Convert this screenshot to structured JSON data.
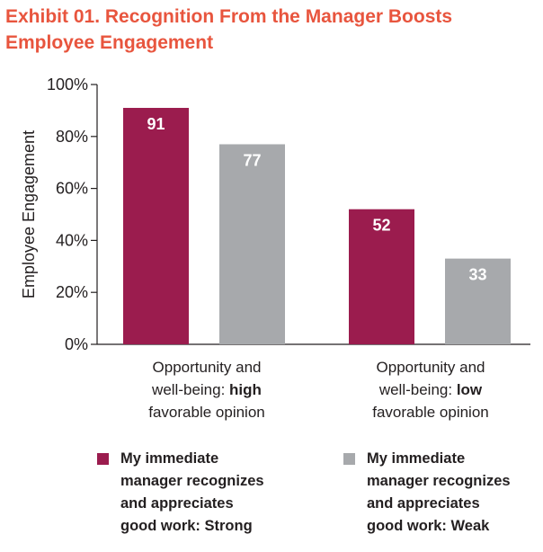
{
  "title": {
    "lines": [
      "Exhibit 01. Recognition From the Manager Boosts",
      "Employee Engagement"
    ]
  },
  "colors": {
    "title": "#e8553e",
    "strong": "#9b1c4e",
    "weak": "#a7a9ac",
    "text": "#231f20"
  },
  "chart_data": {
    "type": "bar",
    "ylabel": "Employee Engagement",
    "ylim": [
      0,
      100
    ],
    "yticks": [
      "0%",
      "20%",
      "40%",
      "60%",
      "80%",
      "100%"
    ],
    "grid": false,
    "legend_position": "bottom",
    "categories": [
      {
        "pre": "Opportunity and",
        "mid": "well-being: ",
        "bold": "high",
        "post": "favorable opinion"
      },
      {
        "pre": "Opportunity and",
        "mid": "well-being: ",
        "bold": "low",
        "post": "favorable opinion"
      }
    ],
    "series": [
      {
        "legend_lines": [
          "My immediate",
          "manager recognizes",
          "and appreciates",
          "good work: Strong"
        ],
        "values": [
          91,
          52
        ],
        "color": "#9b1c4e"
      },
      {
        "legend_lines": [
          "My immediate",
          "manager recognizes",
          "and appreciates",
          "good work: Weak"
        ],
        "values": [
          77,
          33
        ],
        "color": "#a7a9ac"
      }
    ]
  }
}
